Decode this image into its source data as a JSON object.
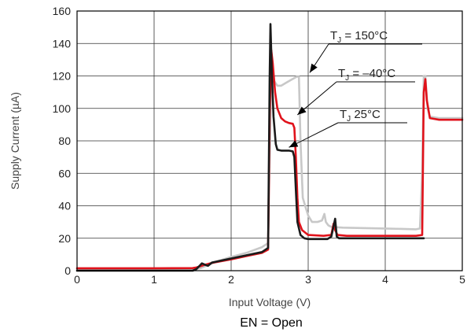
{
  "chart_data": {
    "type": "line",
    "xlabel": "Input Voltage (V)",
    "ylabel": "Supply Current (µA)",
    "xlim": [
      0,
      5
    ],
    "ylim": [
      0,
      160
    ],
    "x_ticks": [
      "0",
      "1",
      "2",
      "3",
      "4",
      "5"
    ],
    "y_ticks": [
      "0",
      "20",
      "40",
      "60",
      "80",
      "100",
      "120",
      "140",
      "160"
    ],
    "grid": true,
    "caption": "EN = Open",
    "series": [
      {
        "name": "T_J = 150°C",
        "color": "#c8c8c8",
        "points": [
          [
            0,
            0.5
          ],
          [
            1.0,
            0.5
          ],
          [
            1.5,
            0.6
          ],
          [
            1.6,
            1.5
          ],
          [
            1.7,
            3.5
          ],
          [
            1.8,
            5.5
          ],
          [
            2.0,
            8.5
          ],
          [
            2.2,
            11
          ],
          [
            2.4,
            14.5
          ],
          [
            2.48,
            17
          ],
          [
            2.52,
            118
          ],
          [
            2.55,
            118
          ],
          [
            2.57,
            116
          ],
          [
            2.6,
            114
          ],
          [
            2.65,
            114
          ],
          [
            2.72,
            116
          ],
          [
            2.85,
            119.5
          ],
          [
            2.88,
            119.5
          ],
          [
            2.9,
            80
          ],
          [
            2.93,
            45
          ],
          [
            2.96,
            40
          ],
          [
            3.0,
            34
          ],
          [
            3.05,
            30
          ],
          [
            3.12,
            30
          ],
          [
            3.18,
            31
          ],
          [
            3.21,
            35
          ],
          [
            3.23,
            30
          ],
          [
            3.26,
            28
          ],
          [
            3.3,
            27
          ],
          [
            3.45,
            26.5
          ],
          [
            4.0,
            26
          ],
          [
            4.4,
            25.5
          ],
          [
            4.45,
            26
          ],
          [
            4.48,
            60
          ],
          [
            4.5,
            120
          ],
          [
            4.52,
            120
          ],
          [
            4.55,
            100
          ],
          [
            4.58,
            95
          ],
          [
            4.7,
            94
          ],
          [
            5.0,
            94
          ]
        ]
      },
      {
        "name": "T_J = –40°C",
        "color": "#e0121b",
        "points": [
          [
            0,
            1.5
          ],
          [
            1.0,
            1.5
          ],
          [
            1.5,
            1.6
          ],
          [
            1.55,
            2
          ],
          [
            1.65,
            3.5
          ],
          [
            1.75,
            4.8
          ],
          [
            2.0,
            7
          ],
          [
            2.2,
            9
          ],
          [
            2.4,
            11
          ],
          [
            2.48,
            13
          ],
          [
            2.5,
            95
          ],
          [
            2.52,
            136
          ],
          [
            2.54,
            128
          ],
          [
            2.57,
            110
          ],
          [
            2.6,
            100
          ],
          [
            2.65,
            94
          ],
          [
            2.7,
            92
          ],
          [
            2.75,
            91
          ],
          [
            2.8,
            90.5
          ],
          [
            2.82,
            88
          ],
          [
            2.84,
            70
          ],
          [
            2.86,
            45
          ],
          [
            2.88,
            30
          ],
          [
            2.92,
            25
          ],
          [
            3.0,
            22
          ],
          [
            3.2,
            21.5
          ],
          [
            3.3,
            22
          ],
          [
            3.33,
            29
          ],
          [
            3.35,
            25
          ],
          [
            3.38,
            22
          ],
          [
            3.5,
            21.5
          ],
          [
            4.0,
            21.5
          ],
          [
            4.4,
            21.5
          ],
          [
            4.48,
            22
          ],
          [
            4.5,
            110
          ],
          [
            4.52,
            118
          ],
          [
            4.54,
            105
          ],
          [
            4.58,
            94
          ],
          [
            4.7,
            93
          ],
          [
            5.0,
            93
          ]
        ]
      },
      {
        "name": "T_J = 25°C",
        "color": "#1b1b1b",
        "points": [
          [
            0,
            0
          ],
          [
            1.0,
            0
          ],
          [
            1.5,
            0
          ],
          [
            1.55,
            1
          ],
          [
            1.62,
            4.5
          ],
          [
            1.67,
            3.5
          ],
          [
            1.7,
            3
          ],
          [
            1.75,
            5
          ],
          [
            2.0,
            7.5
          ],
          [
            2.2,
            9.5
          ],
          [
            2.4,
            11.5
          ],
          [
            2.48,
            14
          ],
          [
            2.5,
            120
          ],
          [
            2.51,
            152
          ],
          [
            2.53,
            120
          ],
          [
            2.55,
            95
          ],
          [
            2.58,
            78
          ],
          [
            2.6,
            74.5
          ],
          [
            2.65,
            74
          ],
          [
            2.75,
            74
          ],
          [
            2.8,
            73.5
          ],
          [
            2.82,
            70
          ],
          [
            2.84,
            50
          ],
          [
            2.86,
            30
          ],
          [
            2.9,
            22
          ],
          [
            2.95,
            20
          ],
          [
            3.0,
            19.5
          ],
          [
            3.25,
            19.5
          ],
          [
            3.3,
            21
          ],
          [
            3.35,
            32
          ],
          [
            3.37,
            21
          ],
          [
            3.4,
            20
          ],
          [
            4.0,
            20
          ],
          [
            4.5,
            20
          ]
        ]
      }
    ],
    "annotations": [
      {
        "base": "T",
        "sub": "J",
        "rest": " = 150°C",
        "target_x": 3.02,
        "target_y": 122
      },
      {
        "base": "T",
        "sub": "J",
        "rest": " = –40°C",
        "target_x": 2.86,
        "target_y": 96
      },
      {
        "base": "T",
        "sub": "J",
        "rest": "  25°C",
        "target_x": 2.75,
        "target_y": 76
      }
    ]
  }
}
